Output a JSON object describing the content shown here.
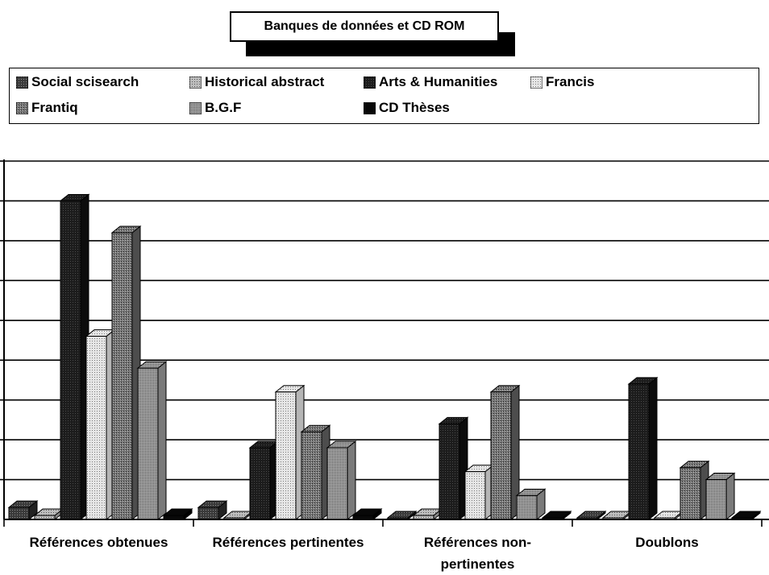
{
  "chart_data": {
    "type": "bar",
    "title": "Banques de données et CD ROM",
    "categories": [
      [
        "Références obtenues"
      ],
      [
        "Références pertinentes"
      ],
      [
        "Références non-",
        "pertinentes"
      ],
      [
        "Doublons"
      ]
    ],
    "series": [
      {
        "name": "Social scisearch",
        "pattern": "dense",
        "values": [
          3,
          3,
          0,
          0
        ]
      },
      {
        "name": "Historical abstract",
        "pattern": "dots",
        "values": [
          1,
          0,
          1,
          0
        ]
      },
      {
        "name": "Arts & Humanities",
        "pattern": "dark",
        "values": [
          80,
          18,
          24,
          34
        ]
      },
      {
        "name": "Francis",
        "pattern": "light",
        "values": [
          46,
          32,
          12,
          0
        ]
      },
      {
        "name": "Frantiq",
        "pattern": "medium",
        "values": [
          72,
          22,
          32,
          13
        ]
      },
      {
        "name": "B.G.F",
        "pattern": "fine",
        "values": [
          38,
          18,
          6,
          10
        ]
      },
      {
        "name": "CD Thèses",
        "pattern": "black",
        "values": [
          1,
          1,
          0,
          0
        ]
      }
    ],
    "ylim": [
      0,
      90
    ],
    "gridlines": 9,
    "grid": true,
    "legend": "top"
  }
}
